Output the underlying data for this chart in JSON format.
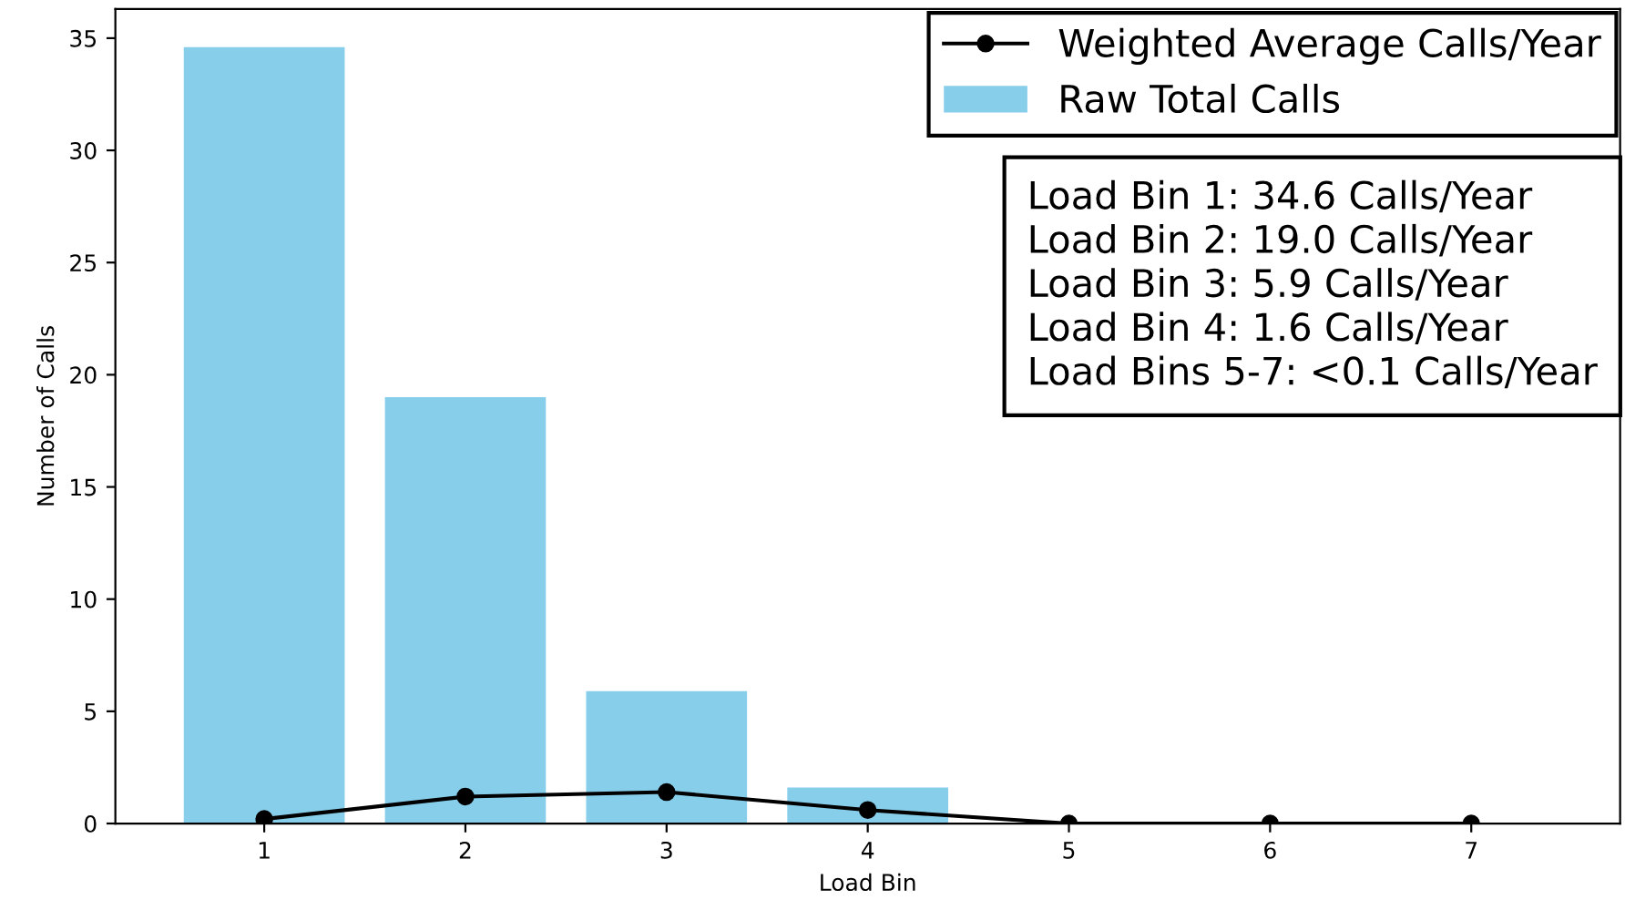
{
  "chart_data": {
    "type": "bar",
    "categories": [
      "1",
      "2",
      "3",
      "4",
      "5",
      "6",
      "7"
    ],
    "xlabel": "Load Bin",
    "ylabel": "Number of Calls",
    "series": [
      {
        "name": "Raw Total Calls",
        "color": "#87ceeb",
        "values": [
          34.6,
          19.0,
          5.9,
          1.6,
          0,
          0,
          0
        ]
      },
      {
        "name": "Weighted Average Calls/Year",
        "type": "line",
        "color": "#000000",
        "values": [
          0.2,
          1.2,
          1.4,
          0.6,
          0.0,
          0.0,
          0.0
        ]
      }
    ],
    "ylim": [
      0,
      36.3
    ],
    "yticks": [
      0,
      5,
      10,
      15,
      20,
      25,
      30,
      35
    ],
    "marker": "circle",
    "legend": "top right",
    "grid": false,
    "annotations": [
      "Load Bin 1: 34.6 Calls/Year\nLoad Bin 2: 19.0 Calls/Year\nLoad Bin 3: 5.9 Calls/Year\nLoad Bin 4: 1.6 Calls/Year\nLoad Bins 5-7: <0.1 Calls/Year"
    ]
  }
}
